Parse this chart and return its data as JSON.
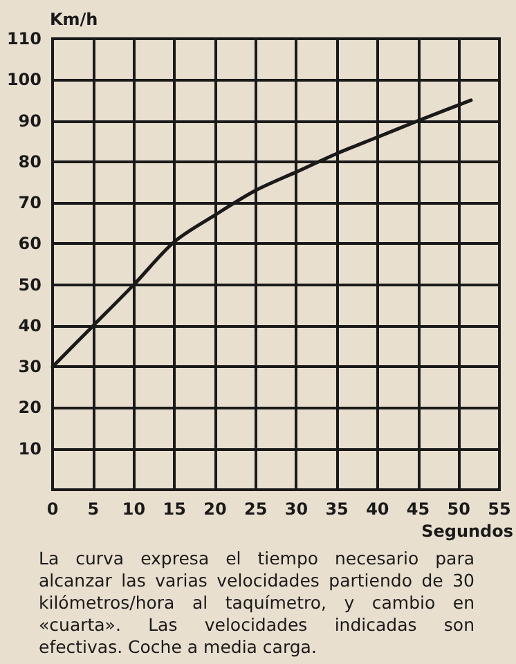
{
  "chart_data": {
    "type": "line",
    "xlabel": "Segundos",
    "ylabel": "Km/h",
    "x": [
      0,
      5,
      10,
      15,
      20,
      25,
      30,
      35,
      40,
      45,
      51.5
    ],
    "series": [
      {
        "color": "#1a1a1a",
        "values": [
          30,
          40,
          50,
          60.5,
          67,
          73,
          77.5,
          82,
          86,
          90,
          95
        ]
      }
    ],
    "xlim": [
      0,
      55
    ],
    "xticks": [
      0,
      5,
      10,
      15,
      20,
      25,
      30,
      35,
      40,
      45,
      50,
      55
    ],
    "ylim": [
      0,
      110
    ],
    "yticks": [
      {
        "value": 0,
        "label": null
      },
      10,
      20,
      30,
      40,
      50,
      60,
      70,
      80,
      90,
      100,
      110
    ],
    "grid": true,
    "marker": "none",
    "line_style": "solid",
    "annotations": [
      "La curva expresa el tiempo necesario para alcanzar las varias velocidades partiendo de 30 kilómetros/hora al taquímetro, y cambio en «cuarta». Las velocidades indicadas son efectivas. Coche a media carga."
    ]
  }
}
